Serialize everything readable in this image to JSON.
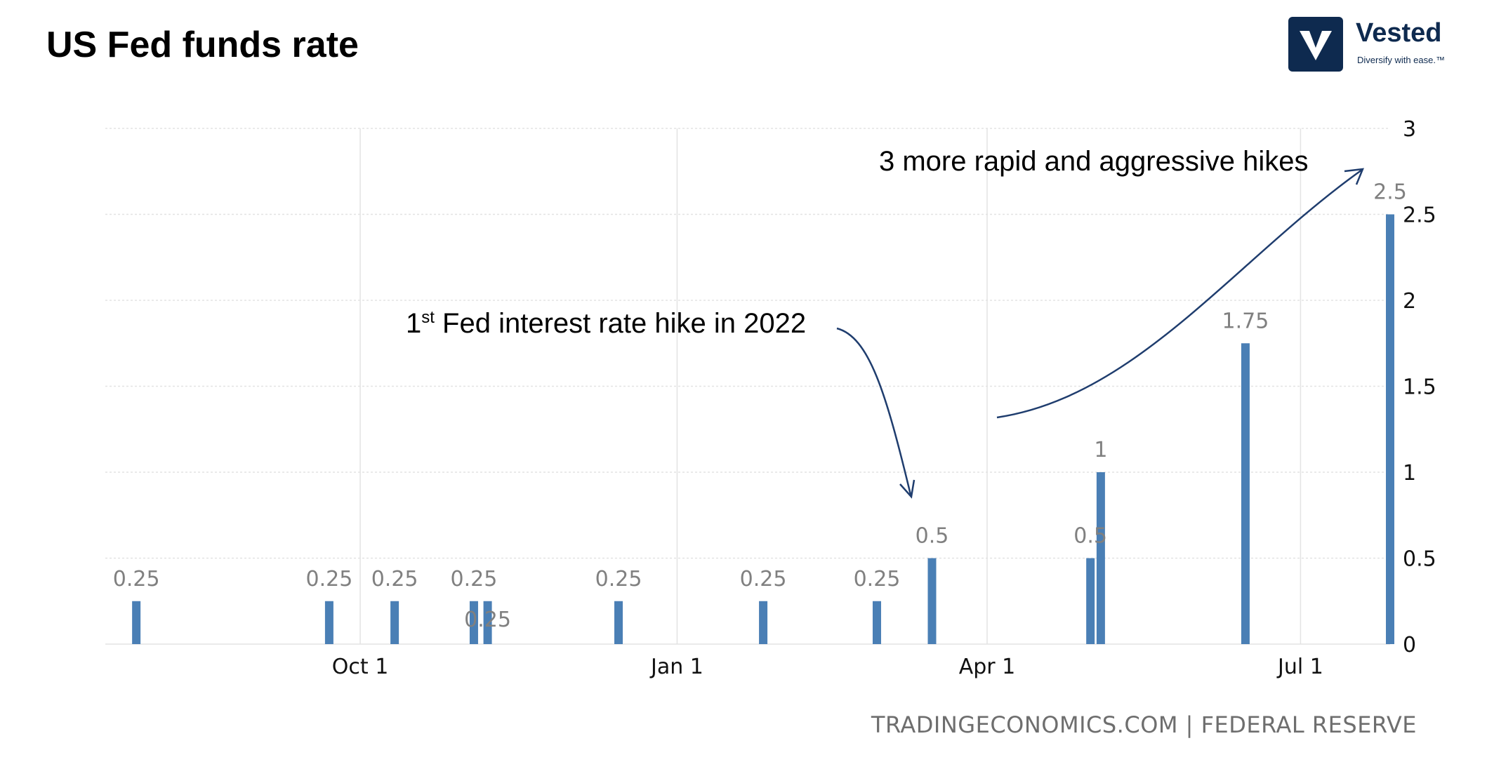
{
  "title": "US Fed funds rate",
  "logo": {
    "name": "Vested",
    "tagline": "Diversify with ease.™",
    "icon": "vested-v-logo-icon"
  },
  "source": "TRADINGECONOMICS.COM | FEDERAL RESERVE",
  "colors": {
    "bar": "#4a7fb5",
    "arrow": "#1f3d6e",
    "grid": "#e3e3e3",
    "logo": "#0e2a4f"
  },
  "chart_data": {
    "type": "bar",
    "title": "US Fed funds rate",
    "xlabel": "",
    "ylabel": "",
    "x_axis": {
      "type": "date",
      "range": [
        "2021-07-19",
        "2022-07-27"
      ],
      "ticks": [
        {
          "date": "2021-10-01",
          "label": "Oct 1"
        },
        {
          "date": "2022-01-01",
          "label": "Jan 1"
        },
        {
          "date": "2022-04-01",
          "label": "Apr 1"
        },
        {
          "date": "2022-07-01",
          "label": "Jul 1"
        }
      ]
    },
    "y_axis": {
      "ylim": [
        0,
        3
      ],
      "ticks": [
        0,
        0.5,
        1,
        1.5,
        2,
        2.5,
        3
      ],
      "position": "right",
      "grid": true
    },
    "series": [
      {
        "points": [
          {
            "date": "2021-07-28",
            "value": 0.25,
            "label": "0.25"
          },
          {
            "date": "2021-09-22",
            "value": 0.25,
            "label": "0.25"
          },
          {
            "date": "2021-10-11",
            "value": 0.25,
            "label": "0.25"
          },
          {
            "date": "2021-11-03",
            "value": 0.25,
            "label": "0.25"
          },
          {
            "date": "2021-11-07",
            "value": 0.25,
            "label": "0.25"
          },
          {
            "date": "2021-12-15",
            "value": 0.25,
            "label": "0.25"
          },
          {
            "date": "2022-01-26",
            "value": 0.25,
            "label": "0.25"
          },
          {
            "date": "2022-02-28",
            "value": 0.25,
            "label": "0.25"
          },
          {
            "date": "2022-03-16",
            "value": 0.5,
            "label": "0.5"
          },
          {
            "date": "2022-05-01",
            "value": 0.5,
            "label": "0.5"
          },
          {
            "date": "2022-05-04",
            "value": 1,
            "label": "1"
          },
          {
            "date": "2022-06-15",
            "value": 1.75,
            "label": "1.75"
          },
          {
            "date": "2022-07-27",
            "value": 2.5,
            "label": "2.5"
          }
        ]
      }
    ],
    "annotations": [
      {
        "text_main": "1",
        "text_sup": "st",
        "text_rest": " Fed interest rate hike in 2022",
        "points_to": "2022-03-16"
      },
      {
        "text": "3 more rapid and aggressive hikes",
        "points_to": "2022-07-27"
      }
    ]
  }
}
